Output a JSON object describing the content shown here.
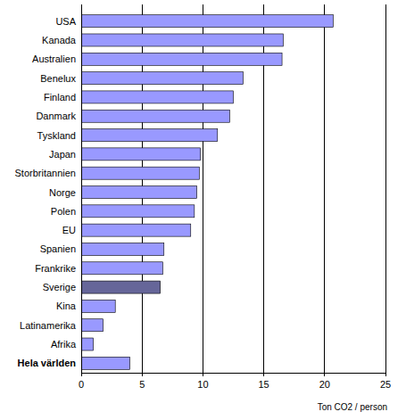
{
  "chart_data": {
    "type": "bar",
    "orientation": "horizontal",
    "categories": [
      "USA",
      "Kanada",
      "Australien",
      "Benelux",
      "Finland",
      "Danmark",
      "Tyskland",
      "Japan",
      "Storbritannien",
      "Norge",
      "Polen",
      "EU",
      "Spanien",
      "Frankrike",
      "Sverige",
      "Kina",
      "Latinamerika",
      "Afrika",
      "Hela världen"
    ],
    "values": [
      20.7,
      16.6,
      16.5,
      13.3,
      12.5,
      12.2,
      11.2,
      9.8,
      9.7,
      9.5,
      9.3,
      9.0,
      6.8,
      6.7,
      6.5,
      2.8,
      1.8,
      1.0,
      4.0
    ],
    "colors": [
      "#9999ff",
      "#9999ff",
      "#9999ff",
      "#9999ff",
      "#9999ff",
      "#9999ff",
      "#9999ff",
      "#9999ff",
      "#9999ff",
      "#9999ff",
      "#9999ff",
      "#9999ff",
      "#9999ff",
      "#9999ff",
      "#666699",
      "#9999ff",
      "#9999ff",
      "#9999ff",
      "#9999ff"
    ],
    "x_label": "Ton CO2 / person",
    "xlim": [
      0,
      25
    ],
    "xticks": [
      0,
      5,
      10,
      15,
      20,
      25
    ],
    "grid": true
  }
}
